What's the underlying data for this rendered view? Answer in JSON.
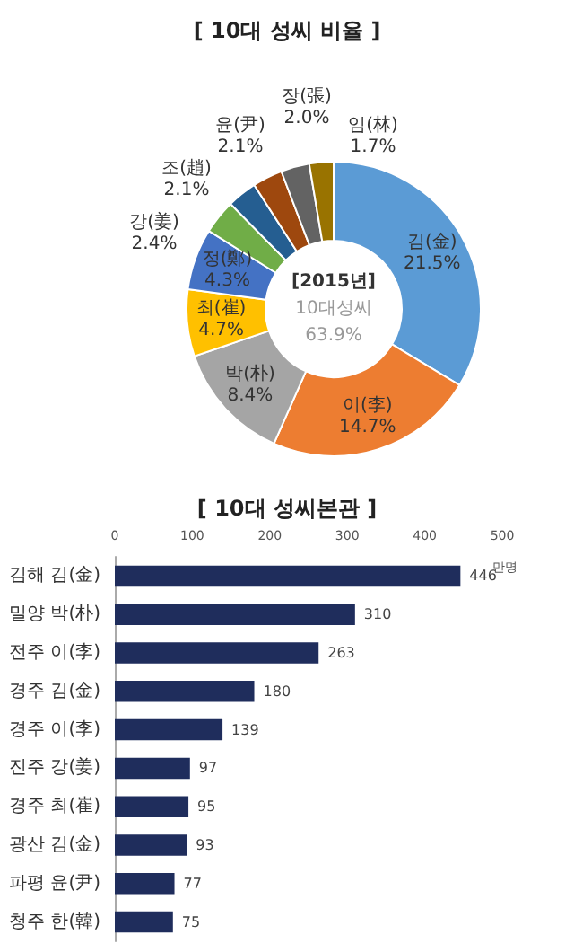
{
  "chart_data": [
    {
      "type": "donut",
      "title": "[ 10대 성씨 비율 ]",
      "categories": [
        "김(金)",
        "이(李)",
        "박(朴)",
        "최(崔)",
        "정(鄭)",
        "강(姜)",
        "조(趙)",
        "윤(尹)",
        "장(張)",
        "임(林)"
      ],
      "values": [
        21.5,
        14.7,
        8.4,
        4.7,
        4.3,
        2.4,
        2.1,
        2.1,
        2.0,
        1.7
      ],
      "value_labels": [
        "21.5%",
        "14.7%",
        "8.4%",
        "4.7%",
        "4.3%",
        "2.4%",
        "2.1%",
        "2.1%",
        "2.0%",
        "1.7%"
      ],
      "colors": [
        "#5b9bd5",
        "#ed7d31",
        "#a5a5a5",
        "#ffc000",
        "#4472c4",
        "#70ad47",
        "#255e91",
        "#9e480e",
        "#636363",
        "#997300"
      ],
      "annotations": [
        "[2015년]",
        "10대성씨",
        "63.9%"
      ],
      "legend": false
    },
    {
      "type": "bar",
      "orientation": "horizontal",
      "title": "[ 10대 성씨본관 ]",
      "categories": [
        "김해 김(金)",
        "밀양 박(朴)",
        "전주 이(李)",
        "경주 김(金)",
        "경주 이(李)",
        "진주 강(姜)",
        "경주 최(崔)",
        "광산 김(金)",
        "파평 윤(尹)",
        "청주 한(韓)"
      ],
      "values": [
        446,
        310,
        263,
        180,
        139,
        97,
        95,
        93,
        77,
        75
      ],
      "color": "#1f2d5c",
      "xlim": [
        0,
        500
      ],
      "xticks": [
        0,
        100,
        200,
        300,
        400,
        500
      ],
      "data_labels": true,
      "grid": false,
      "legend": false,
      "annotations": [
        {
          "text": "만명",
          "x": 446,
          "y": "김해 김(金)"
        }
      ]
    }
  ]
}
